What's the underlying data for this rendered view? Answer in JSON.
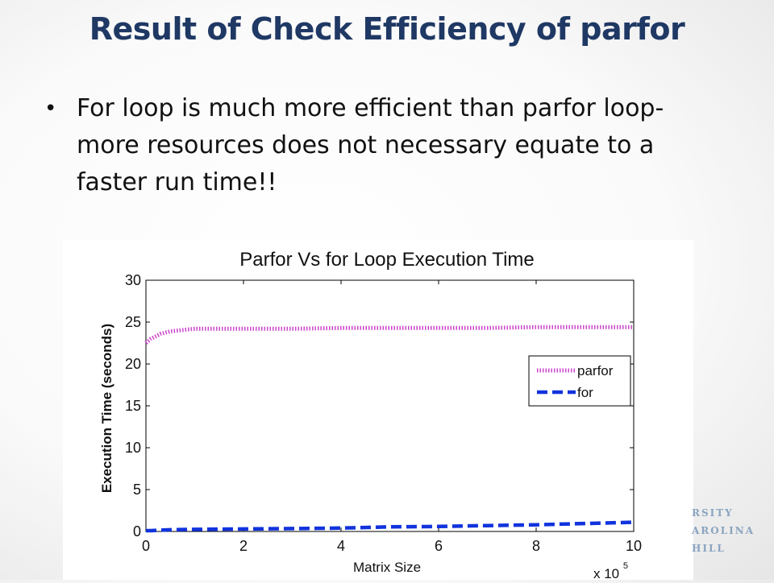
{
  "slide": {
    "title": "Result of Check Efficiency of parfor",
    "bullets": [
      "For loop is much more efficient than parfor loop- more resources does not necessary equate to a faster run time!!"
    ],
    "bullet_symbol": "•",
    "title_color": "#1f3864",
    "logo_lines": [
      "RSITY",
      "AROLINA",
      "HILL"
    ]
  },
  "chart_data": {
    "type": "line",
    "title": "Parfor Vs for Loop Execution Time",
    "xlabel": "Matrix Size",
    "ylabel": "Execution Time (seconds)",
    "x_exponent_label": "x 10",
    "x_exponent": "5",
    "xlim": [
      0,
      10
    ],
    "ylim": [
      0,
      30
    ],
    "xticks": [
      "0",
      "2",
      "4",
      "6",
      "8",
      "10"
    ],
    "yticks": [
      "0",
      "5",
      "10",
      "15",
      "20",
      "25",
      "30"
    ],
    "grid": false,
    "legend_position": "right",
    "x": [
      0,
      0.1,
      0.3,
      0.5,
      1,
      2,
      3,
      4,
      5,
      6,
      7,
      8,
      9,
      10
    ],
    "series": [
      {
        "name": "parfor",
        "color": "#cc44cc",
        "style": "dotted",
        "values": [
          22.5,
          23.0,
          23.6,
          23.9,
          24.2,
          24.2,
          24.2,
          24.3,
          24.3,
          24.3,
          24.3,
          24.4,
          24.4,
          24.4
        ]
      },
      {
        "name": "for",
        "color": "#1133dd",
        "style": "dashed",
        "values": [
          0.1,
          0.1,
          0.15,
          0.2,
          0.25,
          0.3,
          0.35,
          0.4,
          0.55,
          0.6,
          0.7,
          0.8,
          0.95,
          1.1
        ]
      }
    ]
  }
}
